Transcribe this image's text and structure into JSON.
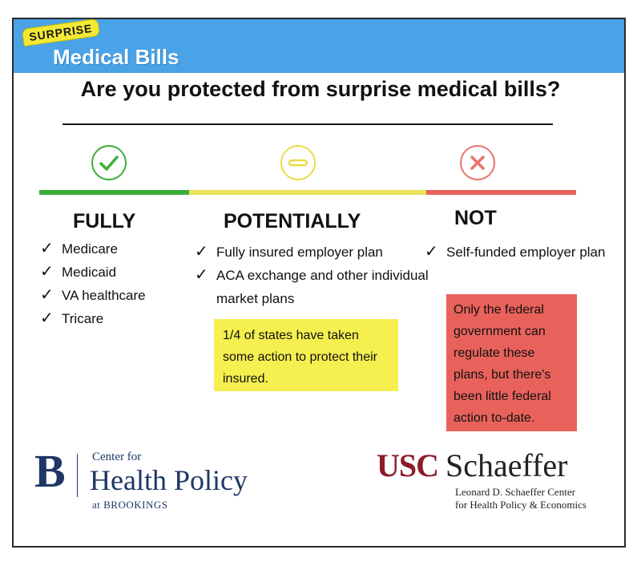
{
  "header": {
    "badge": "SURPRISE",
    "title": "Medical Bills"
  },
  "question": "Are you protected from surprise medical bills?",
  "colors": {
    "banner": "#4aa3e6",
    "fully": "#3cae3a",
    "potentially": "#ece258",
    "not": "#e9625c"
  },
  "columns": {
    "fully": {
      "icon": "check-circle-icon",
      "heading": "FULLY",
      "items": [
        "Medicare",
        "Medicaid",
        "VA healthcare",
        "Tricare"
      ]
    },
    "potentially": {
      "icon": "minus-circle-icon",
      "heading": "POTENTIALLY",
      "items": [
        "Fully insured employer plan",
        "ACA exchange and other individual market plans"
      ],
      "note": "1/4 of states have taken some action to protect their insured."
    },
    "not": {
      "icon": "x-circle-icon",
      "heading": "NOT",
      "items": [
        "Self-funded employer plan"
      ],
      "note": "Only the federal government can regulate these plans, but there's been little federal action to-date."
    }
  },
  "check_glyph": "✓",
  "logos": {
    "brookings": {
      "letter": "B",
      "top": "Center for",
      "main": "Health Policy",
      "bottom": "at BROOKINGS"
    },
    "usc": {
      "mark": "USC",
      "name": "Schaeffer",
      "sub_line1": "Leonard D. Schaeffer Center",
      "sub_line2": "for Health Policy & Economics"
    }
  }
}
